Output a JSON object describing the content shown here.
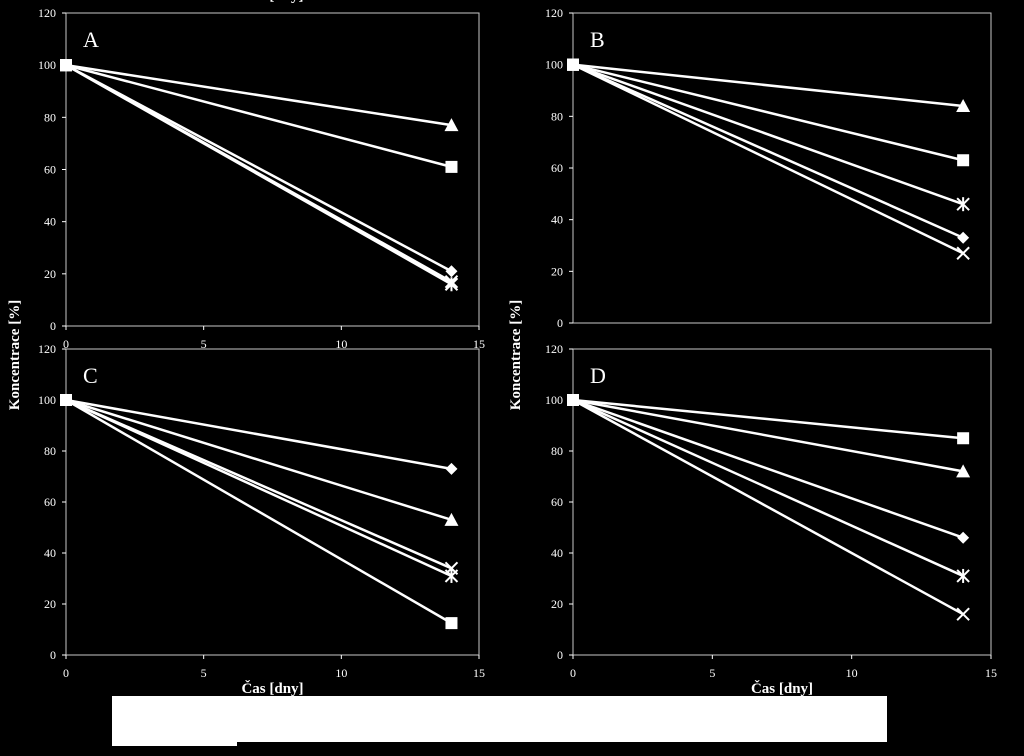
{
  "chart_data": [
    {
      "type": "line",
      "panel_label": "A",
      "ylabel": "Koncentrace [%]",
      "xlabel": "Čas [dny]",
      "xlim": [
        0,
        15
      ],
      "ylim": [
        0,
        120
      ],
      "x_ticks": [
        "0",
        "5",
        "10",
        "15"
      ],
      "y_ticks": [
        "0",
        "20",
        "40",
        "60",
        "80",
        "100",
        "120"
      ],
      "x": [
        0,
        14
      ],
      "series": [
        {
          "marker": "triangle",
          "values": [
            100,
            77
          ]
        },
        {
          "marker": "square",
          "values": [
            100,
            61
          ]
        },
        {
          "marker": "diamond",
          "values": [
            100,
            21
          ]
        },
        {
          "marker": "x",
          "values": [
            100,
            17
          ]
        },
        {
          "marker": "star",
          "values": [
            100,
            16
          ]
        }
      ]
    },
    {
      "type": "line",
      "panel_label": "B",
      "ylabel": "",
      "xlabel": "",
      "xlim": [
        0,
        15
      ],
      "ylim": [
        0,
        120
      ],
      "x_ticks": [],
      "y_ticks": [
        "0",
        "20",
        "40",
        "60",
        "80",
        "100",
        "120"
      ],
      "x": [
        0,
        14
      ],
      "series": [
        {
          "marker": "triangle",
          "values": [
            100,
            84
          ]
        },
        {
          "marker": "square",
          "values": [
            100,
            63
          ]
        },
        {
          "marker": "star",
          "values": [
            100,
            46
          ]
        },
        {
          "marker": "diamond",
          "values": [
            100,
            33
          ]
        },
        {
          "marker": "x",
          "values": [
            100,
            27
          ]
        }
      ]
    },
    {
      "type": "line",
      "panel_label": "C",
      "ylabel": "Koncentrace [%]",
      "xlabel": "Čas [dny]",
      "xlim": [
        0,
        15
      ],
      "ylim": [
        0,
        120
      ],
      "x_ticks": [
        "0",
        "5",
        "10",
        "15"
      ],
      "y_ticks": [
        "0",
        "20",
        "40",
        "60",
        "80",
        "100",
        "120"
      ],
      "x": [
        0,
        14
      ],
      "series": [
        {
          "marker": "diamond",
          "values": [
            100,
            73
          ]
        },
        {
          "marker": "triangle",
          "values": [
            100,
            53
          ]
        },
        {
          "marker": "x",
          "values": [
            100,
            34
          ]
        },
        {
          "marker": "star",
          "values": [
            100,
            31
          ]
        },
        {
          "marker": "square",
          "values": [
            100,
            12.5
          ]
        }
      ]
    },
    {
      "type": "line",
      "panel_label": "D",
      "ylabel": "Koncentrace [%]",
      "xlabel": "Čas [dny]",
      "xlim": [
        0,
        15
      ],
      "ylim": [
        0,
        120
      ],
      "x_ticks": [
        "0",
        "5",
        "10",
        "15"
      ],
      "y_ticks": [
        "0",
        "20",
        "40",
        "60",
        "80",
        "100",
        "120"
      ],
      "x": [
        0,
        14
      ],
      "series": [
        {
          "marker": "square",
          "values": [
            100,
            85
          ]
        },
        {
          "marker": "triangle",
          "values": [
            100,
            72
          ]
        },
        {
          "marker": "diamond",
          "values": [
            100,
            46
          ]
        },
        {
          "marker": "star",
          "values": [
            100,
            31
          ]
        },
        {
          "marker": "x",
          "values": [
            100,
            16
          ]
        }
      ]
    }
  ],
  "colors": {
    "background": "#000000",
    "foreground": "#ffffff",
    "caption_box": "#ffffff"
  }
}
